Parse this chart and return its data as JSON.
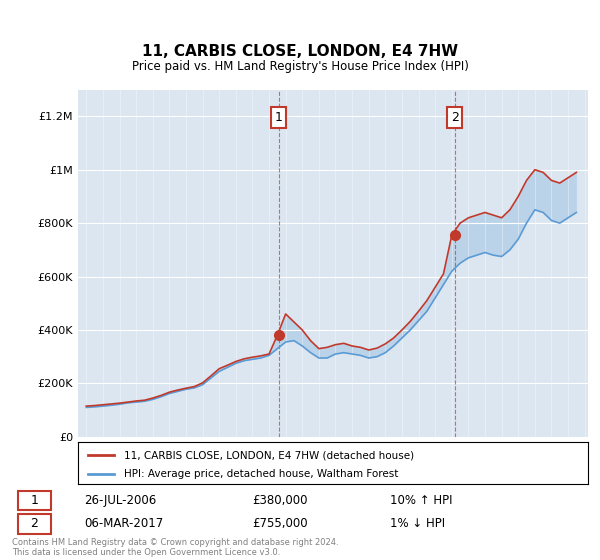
{
  "title": "11, CARBIS CLOSE, LONDON, E4 7HW",
  "subtitle": "Price paid vs. HM Land Registry's House Price Index (HPI)",
  "xlabel": "",
  "ylabel": "",
  "ylim": [
    0,
    1300000
  ],
  "yticks": [
    0,
    200000,
    400000,
    600000,
    800000,
    1000000,
    1200000
  ],
  "ytick_labels": [
    "£0",
    "£200K",
    "£400K",
    "£600K",
    "£800K",
    "£1M",
    "£1.2M"
  ],
  "bg_color": "#dce6f1",
  "plot_bg_color": "#dce6f1",
  "line_color_red": "#c0392b",
  "line_color_blue": "#5b9bd5",
  "legend_label_red": "11, CARBIS CLOSE, LONDON, E4 7HW (detached house)",
  "legend_label_blue": "HPI: Average price, detached house, Waltham Forest",
  "sale1_date": "26-JUL-2006",
  "sale1_price": 380000,
  "sale1_hpi": "10% ↑ HPI",
  "sale1_label": "1",
  "sale2_date": "06-MAR-2017",
  "sale2_price": 755000,
  "sale2_hpi": "1% ↓ HPI",
  "sale2_label": "2",
  "footnote": "Contains HM Land Registry data © Crown copyright and database right 2024.\nThis data is licensed under the Open Government Licence v3.0.",
  "hpi_years": [
    1995,
    1995.5,
    1996,
    1996.5,
    1997,
    1997.5,
    1998,
    1998.5,
    1999,
    1999.5,
    2000,
    2000.5,
    2001,
    2001.5,
    2002,
    2002.5,
    2003,
    2003.5,
    2004,
    2004.5,
    2005,
    2005.5,
    2006,
    2006.5,
    2007,
    2007.5,
    2008,
    2008.5,
    2009,
    2009.5,
    2010,
    2010.5,
    2011,
    2011.5,
    2012,
    2012.5,
    2013,
    2013.5,
    2014,
    2014.5,
    2015,
    2015.5,
    2016,
    2016.5,
    2017,
    2017.5,
    2018,
    2018.5,
    2019,
    2019.5,
    2020,
    2020.5,
    2021,
    2021.5,
    2022,
    2022.5,
    2023,
    2023.5,
    2024,
    2024.5
  ],
  "hpi_values": [
    110000,
    112000,
    115000,
    118000,
    122000,
    127000,
    130000,
    133000,
    140000,
    150000,
    162000,
    170000,
    178000,
    183000,
    195000,
    220000,
    245000,
    260000,
    275000,
    285000,
    290000,
    295000,
    305000,
    330000,
    355000,
    360000,
    340000,
    315000,
    295000,
    295000,
    310000,
    315000,
    310000,
    305000,
    295000,
    300000,
    315000,
    340000,
    370000,
    400000,
    435000,
    470000,
    520000,
    570000,
    620000,
    650000,
    670000,
    680000,
    690000,
    680000,
    675000,
    700000,
    740000,
    800000,
    850000,
    840000,
    810000,
    800000,
    820000,
    840000
  ],
  "red_years": [
    1995,
    1995.5,
    1996,
    1996.5,
    1997,
    1997.5,
    1998,
    1998.5,
    1999,
    1999.5,
    2000,
    2000.5,
    2001,
    2001.5,
    2002,
    2002.5,
    2003,
    2003.5,
    2004,
    2004.5,
    2005,
    2005.5,
    2006,
    2006.5,
    2007,
    2007.5,
    2008,
    2008.5,
    2009,
    2009.5,
    2010,
    2010.5,
    2011,
    2011.5,
    2012,
    2012.5,
    2013,
    2013.5,
    2014,
    2014.5,
    2015,
    2015.5,
    2016,
    2016.5,
    2017,
    2017.5,
    2018,
    2018.5,
    2019,
    2019.5,
    2020,
    2020.5,
    2021,
    2021.5,
    2022,
    2022.5,
    2023,
    2023.5,
    2024,
    2024.5
  ],
  "red_values": [
    115000,
    117000,
    120000,
    123000,
    126000,
    130000,
    134000,
    137000,
    145000,
    155000,
    167000,
    175000,
    182000,
    188000,
    202000,
    228000,
    255000,
    268000,
    282000,
    292000,
    298000,
    303000,
    310000,
    380000,
    460000,
    430000,
    400000,
    360000,
    330000,
    335000,
    345000,
    350000,
    340000,
    335000,
    325000,
    332000,
    348000,
    370000,
    400000,
    432000,
    470000,
    510000,
    560000,
    610000,
    755000,
    800000,
    820000,
    830000,
    840000,
    830000,
    820000,
    850000,
    900000,
    960000,
    1000000,
    990000,
    960000,
    950000,
    970000,
    990000
  ],
  "sale1_x": 2006.58,
  "sale1_y": 380000,
  "sale2_x": 2017.17,
  "sale2_y": 755000,
  "xlim_start": 1994.5,
  "xlim_end": 2025.2
}
